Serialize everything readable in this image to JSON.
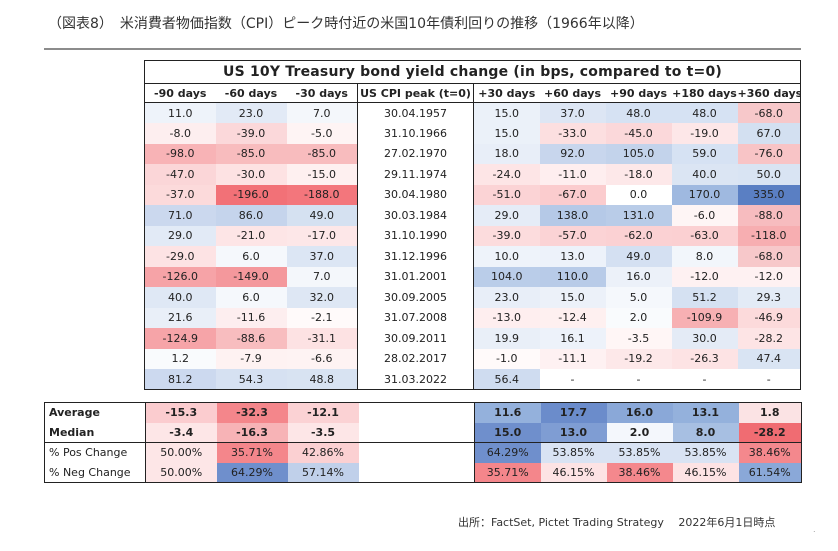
{
  "page_title": "（図表8）　米消費者物価指数（CPI）ピーク時付近の米国10年債利回りの推移（1966年以降）",
  "table": {
    "title": "US 10Y Treasury bond yield change (in bps, compared to t=0)",
    "headers": [
      "-90 days",
      "-60 days",
      "-30 days",
      "US CPI peak (t=0)",
      "+30 days",
      "+60 days",
      "+90 days",
      "+180 days",
      "+360 days"
    ],
    "rows": [
      [
        "11.0",
        "23.0",
        "7.0",
        "30.04.1957",
        "15.0",
        "37.0",
        "48.0",
        "48.0",
        "-68.0"
      ],
      [
        "-8.0",
        "-39.0",
        "-5.0",
        "31.10.1966",
        "15.0",
        "-33.0",
        "-45.0",
        "-19.0",
        "67.0"
      ],
      [
        "-98.0",
        "-85.0",
        "-85.0",
        "27.02.1970",
        "18.0",
        "92.0",
        "105.0",
        "59.0",
        "-76.0"
      ],
      [
        "-47.0",
        "-30.0",
        "-15.0",
        "29.11.1974",
        "-24.0",
        "-11.0",
        "-18.0",
        "40.0",
        "50.0"
      ],
      [
        "-37.0",
        "-196.0",
        "-188.0",
        "30.04.1980",
        "-51.0",
        "-67.0",
        "0.0",
        "170.0",
        "335.0"
      ],
      [
        "71.0",
        "86.0",
        "49.0",
        "30.03.1984",
        "29.0",
        "138.0",
        "131.0",
        "-6.0",
        "-88.0"
      ],
      [
        "29.0",
        "-21.0",
        "-17.0",
        "31.10.1990",
        "-39.0",
        "-57.0",
        "-62.0",
        "-63.0",
        "-118.0"
      ],
      [
        "-29.0",
        "6.0",
        "37.0",
        "31.12.1996",
        "10.0",
        "13.0",
        "49.0",
        "8.0",
        "-68.0"
      ],
      [
        "-126.0",
        "-149.0",
        "7.0",
        "31.01.2001",
        "104.0",
        "110.0",
        "16.0",
        "-12.0",
        "-12.0"
      ],
      [
        "40.0",
        "6.0",
        "32.0",
        "30.09.2005",
        "23.0",
        "15.0",
        "5.0",
        "51.2",
        "29.3"
      ],
      [
        "21.6",
        "-11.6",
        "-2.1",
        "31.07.2008",
        "-13.0",
        "-12.4",
        "2.0",
        "-109.9",
        "-46.9"
      ],
      [
        "-124.9",
        "-88.6",
        "-31.1",
        "30.09.2011",
        "19.9",
        "16.1",
        "-3.5",
        "30.0",
        "-28.2"
      ],
      [
        "1.2",
        "-7.9",
        "-6.6",
        "28.02.2017",
        "-1.0",
        "-11.1",
        "-19.2",
        "-26.3",
        "47.4"
      ],
      [
        "81.2",
        "54.3",
        "48.8",
        "31.03.2022",
        "56.4",
        "-",
        "-",
        "-",
        "-"
      ]
    ],
    "cell_colors": [
      [
        "#eef3fa",
        "#e2eaf6",
        "#f4f7fb",
        null,
        "#ebf1f9",
        "#dde6f4",
        "#d6e2f3",
        "#d6e2f3",
        "#f7c8ca"
      ],
      [
        "#fdeeef",
        "#fbd8da",
        "#fef4f4",
        null,
        "#ebf1f9",
        "#fcdfe0",
        "#fbd8da",
        "#fde7e8",
        "#d3e0f1"
      ],
      [
        "#f8b3b6",
        "#f8bcbe",
        "#f8bcbe",
        null,
        "#e8eef8",
        "#c8d6ed",
        "#c3d3eb",
        "#d6e2f3",
        "#f8c4c6"
      ],
      [
        "#fbd6d8",
        "#fde2e3",
        "#fef0f0",
        null,
        "#fde5e6",
        "#feeeef",
        "#fde8e9",
        "#dbe5f3",
        "#d9e4f3"
      ],
      [
        "#fcdadb",
        "#f27177",
        "#f3767c",
        null,
        "#fbd3d5",
        "#fbccce",
        "#ffffff",
        "#9fb9e0",
        "#5a7fc3"
      ],
      [
        "#cbd8ee",
        "#c5d4ec",
        "#d5e1f1",
        null,
        "#e5ecf7",
        "#b5c9e7",
        "#b9cce8",
        "#fef5f5",
        "#f7bcbf"
      ],
      [
        "#e2eaf6",
        "#fde5e6",
        "#fde7e8",
        null,
        "#fcdcdd",
        "#fbd3d5",
        "#fbd1d3",
        "#fbd0d2",
        "#f7aeb1"
      ],
      [
        "#fde3e4",
        "#f5f8fc",
        "#dce6f4",
        null,
        "#eef3fa",
        "#edf2fa",
        "#d4e0f2",
        "#f2f6fb",
        "#f7c8ca"
      ],
      [
        "#f6a3a7",
        "#f4989c",
        "#f4f7fb",
        null,
        "#bacde9",
        "#b8cbe8",
        "#ecf1f9",
        "#fef1f2",
        "#fef1f2"
      ],
      [
        "#dfe8f5",
        "#f5f8fc",
        "#dee7f4",
        null,
        "#e8eef8",
        "#ecf1f9",
        "#f5f8fc",
        "#d5e1f2",
        "#e3ebf6"
      ],
      [
        "#e9eff8",
        "#fdeeef",
        "#fffafa",
        null,
        "#feeeef",
        "#fef0f0",
        "#f9fbfd",
        "#f7b0b3",
        "#fcdadb"
      ],
      [
        "#f6a4a8",
        "#f8bdbf",
        "#fde2e3",
        null,
        "#e9eff8",
        "#edf2fa",
        "#fff6f6",
        "#e4ebf6",
        "#fde4e5"
      ],
      [
        "#f9fbfd",
        "#fef2f2",
        "#fef3f3",
        null,
        "#fffafa",
        "#fef1f2",
        "#fde8e9",
        "#fde3e4",
        "#d9e4f3"
      ],
      [
        "#ccd9ef",
        "#d6e1f2",
        "#d8e3f2",
        null,
        "#cfdcf0",
        null,
        null,
        null,
        null
      ]
    ]
  },
  "summary": {
    "rows": [
      {
        "label": "Average",
        "values": [
          "-15.3",
          "-32.3",
          "-12.1",
          "",
          "11.6",
          "17.7",
          "16.0",
          "13.1",
          "1.8"
        ],
        "colors": [
          "#fbcccf",
          "#f4868b",
          "#fbd2d4",
          null,
          "#94b1dc",
          "#6b8ccb",
          "#8aa8d8",
          "#94b1dc",
          "#fbe3e4"
        ]
      },
      {
        "label": "Median",
        "values": [
          "-3.4",
          "-16.3",
          "-3.5",
          "",
          "15.0",
          "13.0",
          "2.0",
          "8.0",
          "-28.2"
        ],
        "colors": [
          "#fde6e7",
          "#f7b3b6",
          "#fde6e7",
          null,
          "#6f8fcc",
          "#7f9dd3",
          "#f4f7fc",
          "#a7bfe2",
          "#f06c72"
        ]
      },
      {
        "label": "% Pos Change",
        "values": [
          "50.00%",
          "35.71%",
          "42.86%",
          "",
          "64.29%",
          "53.85%",
          "53.85%",
          "53.85%",
          "38.46%"
        ],
        "colors": [
          "#fde6e7",
          "#f4868b",
          "#fbd0d2",
          null,
          "#6f8fcc",
          "#d9e3f3",
          "#d9e3f3",
          "#d9e3f3",
          "#f4888d"
        ]
      },
      {
        "label": "% Neg Change",
        "values": [
          "50.00%",
          "64.29%",
          "57.14%",
          "",
          "35.71%",
          "46.15%",
          "38.46%",
          "46.15%",
          "61.54%"
        ],
        "colors": [
          "#fde6e7",
          "#6f8fcc",
          "#c0d0ea",
          null,
          "#f4868b",
          "#fde3e4",
          "#f4888d",
          "#fde3e4",
          "#8aa8d8"
        ]
      }
    ]
  },
  "source": "出所：FactSet, Pictet Trading Strategy　 2022年6月1日時点",
  "corner_mark": "."
}
